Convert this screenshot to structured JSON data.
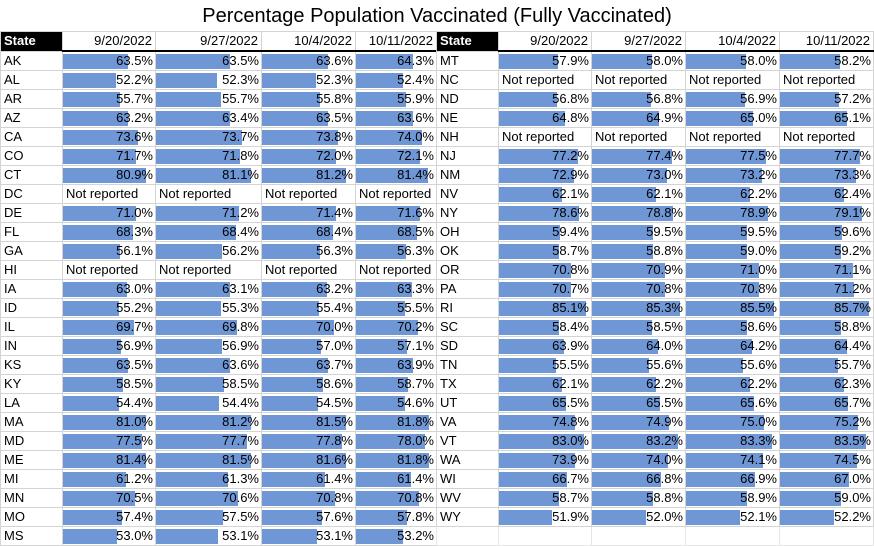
{
  "title": "Percentage Population Vaccinated (Fully Vaccinated)",
  "bar_color": "#6f97d6",
  "header_color": "#000000",
  "scale_max_percent": 90,
  "columns": [
    "State",
    "9/20/2022",
    "9/27/2022",
    "10/4/2022",
    "10/11/2022"
  ],
  "left": [
    {
      "state": "AK",
      "values": [
        "63.5%",
        "63.5%",
        "63.6%",
        "64.3%"
      ]
    },
    {
      "state": "AL",
      "values": [
        "52.2%",
        "52.3%",
        "52.3%",
        "52.4%"
      ]
    },
    {
      "state": "AR",
      "values": [
        "55.7%",
        "55.7%",
        "55.8%",
        "55.9%"
      ]
    },
    {
      "state": "AZ",
      "values": [
        "63.2%",
        "63.4%",
        "63.5%",
        "63.6%"
      ]
    },
    {
      "state": "CA",
      "values": [
        "73.6%",
        "73.7%",
        "73.8%",
        "74.0%"
      ]
    },
    {
      "state": "CO",
      "values": [
        "71.7%",
        "71.8%",
        "72.0%",
        "72.1%"
      ]
    },
    {
      "state": "CT",
      "values": [
        "80.9%",
        "81.1%",
        "81.2%",
        "81.4%"
      ]
    },
    {
      "state": "DC",
      "values": [
        "Not reported",
        "Not reported",
        "Not reported",
        "Not reported"
      ]
    },
    {
      "state": "DE",
      "values": [
        "71.0%",
        "71.2%",
        "71.4%",
        "71.6%"
      ]
    },
    {
      "state": "FL",
      "values": [
        "68.3%",
        "68.4%",
        "68.4%",
        "68.5%"
      ]
    },
    {
      "state": "GA",
      "values": [
        "56.1%",
        "56.2%",
        "56.3%",
        "56.3%"
      ]
    },
    {
      "state": "HI",
      "values": [
        "Not reported",
        "Not reported",
        "Not reported",
        "Not reported"
      ]
    },
    {
      "state": "IA",
      "values": [
        "63.0%",
        "63.1%",
        "63.2%",
        "63.3%"
      ]
    },
    {
      "state": "ID",
      "values": [
        "55.2%",
        "55.3%",
        "55.4%",
        "55.5%"
      ]
    },
    {
      "state": "IL",
      "values": [
        "69.7%",
        "69.8%",
        "70.0%",
        "70.2%"
      ]
    },
    {
      "state": "IN",
      "values": [
        "56.9%",
        "56.9%",
        "57.0%",
        "57.1%"
      ]
    },
    {
      "state": "KS",
      "values": [
        "63.5%",
        "63.6%",
        "63.7%",
        "63.9%"
      ]
    },
    {
      "state": "KY",
      "values": [
        "58.5%",
        "58.5%",
        "58.6%",
        "58.7%"
      ]
    },
    {
      "state": "LA",
      "values": [
        "54.4%",
        "54.4%",
        "54.5%",
        "54.6%"
      ]
    },
    {
      "state": "MA",
      "values": [
        "81.0%",
        "81.2%",
        "81.5%",
        "81.8%"
      ]
    },
    {
      "state": "MD",
      "values": [
        "77.5%",
        "77.7%",
        "77.8%",
        "78.0%"
      ]
    },
    {
      "state": "ME",
      "values": [
        "81.4%",
        "81.5%",
        "81.6%",
        "81.8%"
      ]
    },
    {
      "state": "MI",
      "values": [
        "61.2%",
        "61.3%",
        "61.4%",
        "61.4%"
      ]
    },
    {
      "state": "MN",
      "values": [
        "70.5%",
        "70.6%",
        "70.8%",
        "70.8%"
      ]
    },
    {
      "state": "MO",
      "values": [
        "57.4%",
        "57.5%",
        "57.6%",
        "57.8%"
      ]
    },
    {
      "state": "MS",
      "values": [
        "53.0%",
        "53.1%",
        "53.1%",
        "53.2%"
      ]
    }
  ],
  "right": [
    {
      "state": "MT",
      "values": [
        "57.9%",
        "58.0%",
        "58.0%",
        "58.2%"
      ]
    },
    {
      "state": "NC",
      "values": [
        "Not reported",
        "Not reported",
        "Not reported",
        "Not reported"
      ]
    },
    {
      "state": "ND",
      "values": [
        "56.8%",
        "56.8%",
        "56.9%",
        "57.2%"
      ]
    },
    {
      "state": "NE",
      "values": [
        "64.8%",
        "64.9%",
        "65.0%",
        "65.1%"
      ]
    },
    {
      "state": "NH",
      "values": [
        "Not reported",
        "Not reported",
        "Not reported",
        "Not reported"
      ]
    },
    {
      "state": "NJ",
      "values": [
        "77.2%",
        "77.4%",
        "77.5%",
        "77.7%"
      ]
    },
    {
      "state": "NM",
      "values": [
        "72.9%",
        "73.0%",
        "73.2%",
        "73.3%"
      ]
    },
    {
      "state": "NV",
      "values": [
        "62.1%",
        "62.1%",
        "62.2%",
        "62.4%"
      ]
    },
    {
      "state": "NY",
      "values": [
        "78.6%",
        "78.8%",
        "78.9%",
        "79.1%"
      ]
    },
    {
      "state": "OH",
      "values": [
        "59.4%",
        "59.5%",
        "59.5%",
        "59.6%"
      ]
    },
    {
      "state": "OK",
      "values": [
        "58.7%",
        "58.8%",
        "59.0%",
        "59.2%"
      ]
    },
    {
      "state": "OR",
      "values": [
        "70.8%",
        "70.9%",
        "71.0%",
        "71.1%"
      ]
    },
    {
      "state": "PA",
      "values": [
        "70.7%",
        "70.8%",
        "70.8%",
        "71.2%"
      ]
    },
    {
      "state": "RI",
      "values": [
        "85.1%",
        "85.3%",
        "85.5%",
        "85.7%"
      ]
    },
    {
      "state": "SC",
      "values": [
        "58.4%",
        "58.5%",
        "58.6%",
        "58.8%"
      ]
    },
    {
      "state": "SD",
      "values": [
        "63.9%",
        "64.0%",
        "64.2%",
        "64.4%"
      ]
    },
    {
      "state": "TN",
      "values": [
        "55.5%",
        "55.6%",
        "55.6%",
        "55.7%"
      ]
    },
    {
      "state": "TX",
      "values": [
        "62.1%",
        "62.2%",
        "62.2%",
        "62.3%"
      ]
    },
    {
      "state": "UT",
      "values": [
        "65.5%",
        "65.5%",
        "65.6%",
        "65.7%"
      ]
    },
    {
      "state": "VA",
      "values": [
        "74.8%",
        "74.9%",
        "75.0%",
        "75.2%"
      ]
    },
    {
      "state": "VT",
      "values": [
        "83.0%",
        "83.2%",
        "83.3%",
        "83.5%"
      ]
    },
    {
      "state": "WA",
      "values": [
        "73.9%",
        "74.0%",
        "74.1%",
        "74.5%"
      ]
    },
    {
      "state": "WI",
      "values": [
        "66.7%",
        "66.8%",
        "66.9%",
        "67.0%"
      ]
    },
    {
      "state": "WV",
      "values": [
        "58.7%",
        "58.8%",
        "58.9%",
        "59.0%"
      ]
    },
    {
      "state": "WY",
      "values": [
        "51.9%",
        "52.0%",
        "52.1%",
        "52.2%"
      ]
    }
  ]
}
